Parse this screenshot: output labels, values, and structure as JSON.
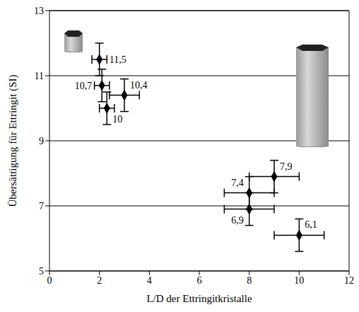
{
  "chart_data": {
    "type": "scatter",
    "x_label": "L/D der Ettringitkristalle",
    "y_label": "Übersättigung für Ettringit (SI)",
    "x": [
      2,
      2.1,
      3,
      2.3,
      9,
      8,
      8,
      10
    ],
    "values": [
      11.5,
      10.7,
      10.4,
      10,
      7.9,
      7.4,
      6.9,
      6.1
    ],
    "value_labels": [
      "11,5",
      "10,7",
      "10,4",
      "10",
      "7,9",
      "7,4",
      "6,9",
      "6,1"
    ],
    "x_err": [
      0.3,
      0.3,
      0.6,
      0.3,
      1,
      1,
      1,
      1
    ],
    "y_err": [
      0.5,
      0.5,
      0.5,
      0.5,
      0.5,
      0.5,
      0.5,
      0.5
    ],
    "xlim": [
      0,
      12
    ],
    "ylim": [
      5,
      13
    ],
    "xticks": [
      0,
      2,
      4,
      6,
      8,
      10,
      12
    ],
    "yticks": [
      5,
      7,
      9,
      11,
      13
    ],
    "grid": true,
    "color": "#000000",
    "marker": "diamond",
    "data_labels": true
  }
}
